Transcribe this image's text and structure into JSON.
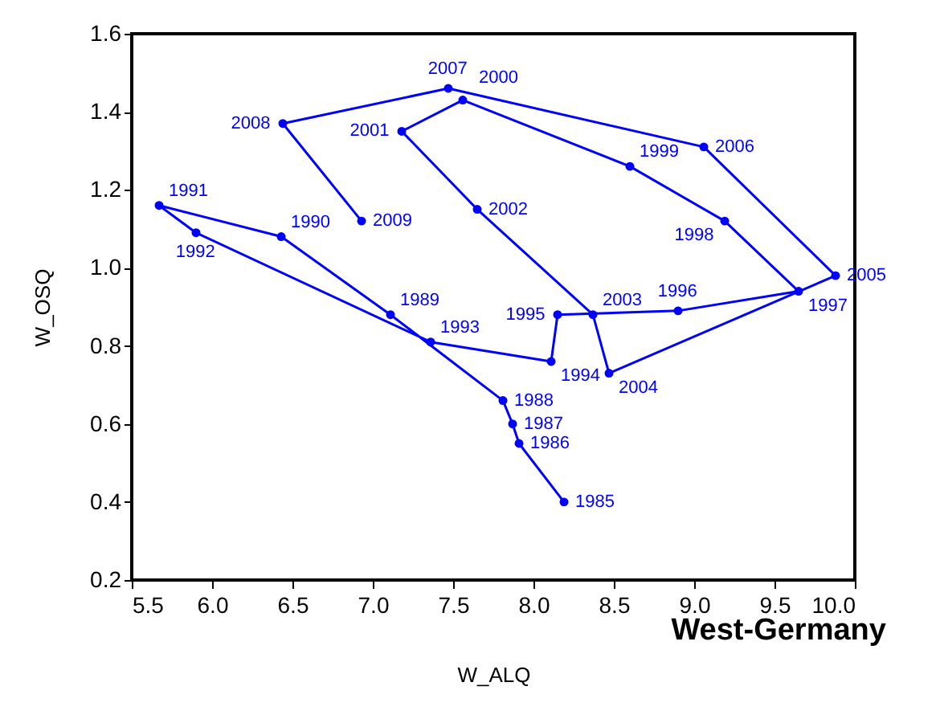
{
  "chart_data": {
    "type": "line",
    "title": "West-Germany",
    "xlabel": "W_ALQ",
    "ylabel": "W_OSQ",
    "x": [
      8.19,
      7.91,
      7.87,
      7.81,
      7.11,
      6.43,
      5.67,
      5.9,
      7.36,
      8.11,
      8.15,
      8.9,
      9.65,
      9.19,
      8.6,
      7.56,
      7.18,
      7.65,
      8.37,
      8.47,
      9.88,
      9.06,
      7.47,
      6.44,
      6.93
    ],
    "series": [
      {
        "color": "#0000ff",
        "values": [
          0.4,
          0.55,
          0.6,
          0.66,
          0.88,
          1.08,
          1.16,
          1.09,
          0.81,
          0.76,
          0.88,
          0.89,
          0.94,
          1.12,
          1.26,
          1.43,
          1.35,
          1.15,
          0.88,
          0.73,
          0.98,
          1.31,
          1.46,
          1.37,
          1.12
        ]
      }
    ],
    "annotations": [
      {
        "text": "1985",
        "x": 8.19,
        "y": 0.4
      },
      {
        "text": "1986",
        "x": 7.91,
        "y": 0.55
      },
      {
        "text": "1987",
        "x": 7.87,
        "y": 0.6
      },
      {
        "text": "1988",
        "x": 7.81,
        "y": 0.66
      },
      {
        "text": "1989",
        "x": 7.11,
        "y": 0.88
      },
      {
        "text": "1990",
        "x": 6.43,
        "y": 1.08
      },
      {
        "text": "1991",
        "x": 5.67,
        "y": 1.16
      },
      {
        "text": "1992",
        "x": 5.9,
        "y": 1.09
      },
      {
        "text": "1993",
        "x": 7.36,
        "y": 0.81
      },
      {
        "text": "1994",
        "x": 8.11,
        "y": 0.76
      },
      {
        "text": "1995",
        "x": 8.15,
        "y": 0.88
      },
      {
        "text": "1996",
        "x": 8.9,
        "y": 0.89
      },
      {
        "text": "1997",
        "x": 9.65,
        "y": 0.94
      },
      {
        "text": "1998",
        "x": 9.19,
        "y": 1.12
      },
      {
        "text": "1999",
        "x": 8.6,
        "y": 1.26
      },
      {
        "text": "2000",
        "x": 7.56,
        "y": 1.43
      },
      {
        "text": "2001",
        "x": 7.18,
        "y": 1.35
      },
      {
        "text": "2002",
        "x": 7.65,
        "y": 1.15
      },
      {
        "text": "2003",
        "x": 8.37,
        "y": 0.88
      },
      {
        "text": "2004",
        "x": 8.47,
        "y": 0.73
      },
      {
        "text": "2005",
        "x": 9.88,
        "y": 0.98
      },
      {
        "text": "2006",
        "x": 9.06,
        "y": 1.31
      },
      {
        "text": "2007",
        "x": 7.47,
        "y": 1.46
      },
      {
        "text": "2008",
        "x": 6.44,
        "y": 1.37
      },
      {
        "text": "2009",
        "x": 6.93,
        "y": 1.12
      }
    ],
    "xlim": [
      5.5,
      10.0
    ],
    "xticks": [
      {
        "value": 5.5,
        "label": "5.5"
      },
      {
        "value": 6.0,
        "label": "6.0"
      },
      {
        "value": 6.5,
        "label": "6.5"
      },
      {
        "value": 7.0,
        "label": "7.0"
      },
      {
        "value": 7.5,
        "label": "7.5"
      },
      {
        "value": 8.0,
        "label": "8.0"
      },
      {
        "value": 8.5,
        "label": "8.5"
      },
      {
        "value": 9.0,
        "label": "9.0"
      },
      {
        "value": 9.5,
        "label": "9.5"
      },
      {
        "value": 10.0,
        "label": "10.0"
      }
    ],
    "ylim": [
      0.2,
      1.6
    ],
    "yticks": [
      {
        "value": 0.2,
        "label": "0.2"
      },
      {
        "value": 0.4,
        "label": "0.4"
      },
      {
        "value": 0.6,
        "label": "0.6"
      },
      {
        "value": 0.8,
        "label": "0.8"
      },
      {
        "value": 1.0,
        "label": "1.0"
      },
      {
        "value": 1.2,
        "label": "1.2"
      },
      {
        "value": 1.4,
        "label": "1.4"
      },
      {
        "value": 1.6,
        "label": "1.6"
      }
    ],
    "grid": false,
    "marker": "circle",
    "line_style": "solid"
  }
}
